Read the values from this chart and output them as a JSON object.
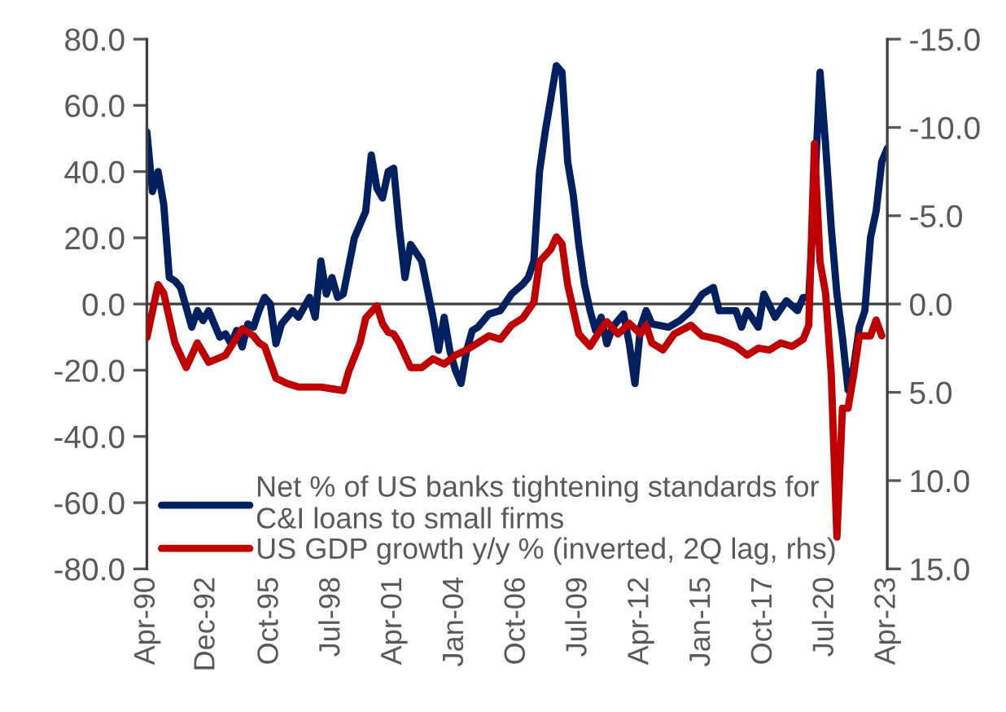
{
  "chart_data": {
    "type": "line",
    "xlim": [
      "1990-04",
      "2023-04"
    ],
    "xticks": [
      {
        "value": "1990-04",
        "label": "Apr-90"
      },
      {
        "value": "1992-12",
        "label": "Dec-92"
      },
      {
        "value": "1995-10",
        "label": "Oct-95"
      },
      {
        "value": "1998-07",
        "label": "Jul-98"
      },
      {
        "value": "2001-04",
        "label": "Apr-01"
      },
      {
        "value": "2004-01",
        "label": "Jan-04"
      },
      {
        "value": "2006-10",
        "label": "Oct-06"
      },
      {
        "value": "2009-07",
        "label": "Jul-09"
      },
      {
        "value": "2012-04",
        "label": "Apr-12"
      },
      {
        "value": "2015-01",
        "label": "Jan-15"
      },
      {
        "value": "2017-10",
        "label": "Oct-17"
      },
      {
        "value": "2020-07",
        "label": "Jul-20"
      },
      {
        "value": "2023-04",
        "label": "Apr-23"
      }
    ],
    "ylim": [
      -80,
      80
    ],
    "yticks": [
      {
        "value": -80,
        "label": "-80.0"
      },
      {
        "value": -60,
        "label": "-60.0"
      },
      {
        "value": -40,
        "label": "-40.0"
      },
      {
        "value": -20,
        "label": "-20.0"
      },
      {
        "value": 0,
        "label": "0.0"
      },
      {
        "value": 20,
        "label": "20.0"
      },
      {
        "value": 40,
        "label": "40.0"
      },
      {
        "value": 60,
        "label": "60.0"
      },
      {
        "value": 80,
        "label": "80.0"
      }
    ],
    "y2lim": [
      15,
      -15
    ],
    "y2ticks": [
      {
        "value": -15,
        "label": "-15.0"
      },
      {
        "value": -10,
        "label": "-10.0"
      },
      {
        "value": -5,
        "label": "-5.0"
      },
      {
        "value": 0,
        "label": "0.0"
      },
      {
        "value": 5,
        "label": "5.0"
      },
      {
        "value": 10,
        "label": "10.0"
      },
      {
        "value": 15,
        "label": "15.0"
      }
    ],
    "ref_lines": [
      {
        "axis": "y",
        "value": 0,
        "color": "#404040"
      }
    ],
    "grid": false,
    "legend": "bottom",
    "line_style": "solid",
    "marker": "none",
    "series": [
      {
        "name": "Net % of US banks tightening standards for C&I loans to small firms",
        "color": "#002060",
        "x": [
          "1990-04",
          "1990-07",
          "1990-10",
          "1991-01",
          "1991-04",
          "1991-07",
          "1991-10",
          "1992-01",
          "1992-04",
          "1992-07",
          "1992-10",
          "1993-01",
          "1993-07",
          "1993-10",
          "1994-01",
          "1994-04",
          "1994-07",
          "1994-10",
          "1995-01",
          "1995-04",
          "1995-07",
          "1995-10",
          "1996-01",
          "1996-04",
          "1996-10",
          "1997-01",
          "1997-07",
          "1997-10",
          "1998-01",
          "1998-04",
          "1998-07",
          "1998-10",
          "1999-01",
          "1999-07",
          "2000-01",
          "2000-04",
          "2000-07",
          "2000-10",
          "2001-01",
          "2001-04",
          "2001-07",
          "2001-10",
          "2002-01",
          "2002-07",
          "2003-01",
          "2003-04",
          "2003-07",
          "2003-10",
          "2004-01",
          "2004-04",
          "2004-07",
          "2004-10",
          "2005-01",
          "2005-07",
          "2006-01",
          "2006-07",
          "2007-01",
          "2007-04",
          "2007-07",
          "2007-10",
          "2008-01",
          "2008-07",
          "2008-10",
          "2009-01",
          "2009-04",
          "2009-07",
          "2009-10",
          "2010-01",
          "2010-04",
          "2010-07",
          "2010-10",
          "2011-01",
          "2011-07",
          "2011-10",
          "2012-01",
          "2012-04",
          "2012-07",
          "2012-10",
          "2013-07",
          "2014-01",
          "2014-07",
          "2015-01",
          "2015-07",
          "2015-10",
          "2016-07",
          "2016-10",
          "2017-01",
          "2017-07",
          "2017-10",
          "2018-04",
          "2018-10",
          "2019-04",
          "2019-07",
          "2019-10",
          "2020-01",
          "2020-04",
          "2020-07",
          "2020-10",
          "2021-01",
          "2021-04",
          "2021-07",
          "2021-10",
          "2022-01",
          "2022-04",
          "2022-07",
          "2022-10",
          "2023-01",
          "2023-04"
        ],
        "values": [
          52,
          34,
          40,
          30,
          8,
          7,
          5,
          -1,
          -7,
          -2,
          -5,
          -2,
          -10,
          -9,
          -12,
          -8,
          -13,
          -6,
          -7,
          -2,
          2,
          0,
          -12,
          -6,
          -2,
          -4,
          2,
          -4,
          13,
          3,
          8,
          2,
          3,
          20,
          28,
          45,
          35,
          32,
          40,
          41,
          23,
          8,
          18,
          13,
          -4,
          -14,
          -4,
          -14,
          -20,
          -24,
          -14,
          -8,
          -7,
          -3,
          -2,
          3,
          6,
          8,
          13,
          40,
          52,
          72,
          70,
          43,
          33,
          18,
          6,
          -2,
          -8,
          -4,
          -12,
          -7,
          -3,
          -12,
          -24,
          -7,
          -2,
          -6,
          -7,
          -5,
          -2,
          3,
          5,
          -2,
          -2,
          -7,
          -2,
          -7,
          3,
          -4,
          1,
          -2,
          2,
          2,
          33,
          70,
          48,
          23,
          3,
          -10,
          -26,
          -19,
          -7,
          -2,
          20,
          28,
          43,
          47
        ]
      },
      {
        "name": "US GDP growth y/y % (inverted, 2Q lag, rhs)",
        "color": "#c00000",
        "axis": "y2",
        "x": [
          "1990-04",
          "1990-10",
          "1991-01",
          "1991-07",
          "1992-01",
          "1992-07",
          "1993-01",
          "1993-10",
          "1994-07",
          "1995-01",
          "1995-04",
          "1995-07",
          "1996-01",
          "1996-07",
          "1997-01",
          "1997-07",
          "1998-01",
          "1998-07",
          "1999-01",
          "1999-04",
          "1999-10",
          "2000-01",
          "2000-07",
          "2000-10",
          "2001-01",
          "2001-04",
          "2001-07",
          "2002-01",
          "2002-07",
          "2003-01",
          "2003-07",
          "2004-01",
          "2004-07",
          "2005-01",
          "2005-07",
          "2006-01",
          "2006-07",
          "2007-01",
          "2007-07",
          "2007-10",
          "2008-04",
          "2008-07",
          "2008-10",
          "2009-01",
          "2009-07",
          "2010-01",
          "2010-07",
          "2010-10",
          "2011-04",
          "2011-10",
          "2012-04",
          "2012-07",
          "2012-10",
          "2013-04",
          "2013-10",
          "2014-07",
          "2015-01",
          "2015-10",
          "2016-07",
          "2017-01",
          "2017-07",
          "2018-01",
          "2018-07",
          "2019-01",
          "2019-07",
          "2019-10",
          "2020-01",
          "2020-04",
          "2020-07",
          "2020-10",
          "2021-01",
          "2021-04",
          "2021-07",
          "2021-10",
          "2022-01",
          "2022-07",
          "2022-10",
          "2023-01"
        ],
        "values": [
          1.9,
          -1.1,
          -0.6,
          2.2,
          3.6,
          2.2,
          3.3,
          2.9,
          1.4,
          1.8,
          2.2,
          2.4,
          4.2,
          4.5,
          4.7,
          4.7,
          4.7,
          4.8,
          4.9,
          3.8,
          2.2,
          0.8,
          0.1,
          1.1,
          1.6,
          1.7,
          2.2,
          3.6,
          3.6,
          3.1,
          3.4,
          2.9,
          2.6,
          2.2,
          1.8,
          2.0,
          1.2,
          0.8,
          -0.1,
          -2.4,
          -3.1,
          -3.8,
          -3.4,
          -1.1,
          1.7,
          2.4,
          1.4,
          1.0,
          1.7,
          1.1,
          1.7,
          1.2,
          2.2,
          2.6,
          1.7,
          1.2,
          1.8,
          2.0,
          2.4,
          2.9,
          2.5,
          2.6,
          2.2,
          2.4,
          2.0,
          1.2,
          -9.1,
          -2.4,
          -0.6,
          4.0,
          13.2,
          5.9,
          5.9,
          4.0,
          1.8,
          1.8,
          0.9,
          1.8
        ]
      }
    ]
  }
}
